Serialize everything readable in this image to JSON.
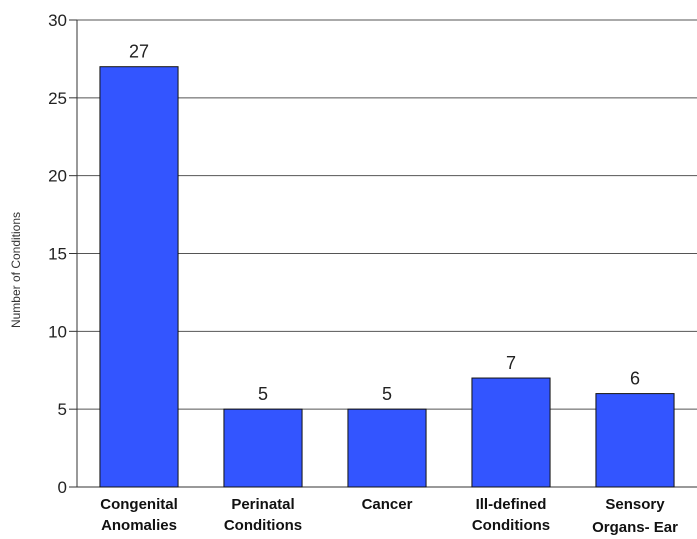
{
  "chart_data": {
    "type": "bar",
    "title": "",
    "xlabel": "",
    "ylabel": "Number of Conditions",
    "ylim": [
      0,
      30
    ],
    "yticks": [
      0,
      5,
      10,
      15,
      20,
      25,
      30
    ],
    "grid": true,
    "legend": "none",
    "categories": [
      [
        "Congenital",
        "Anomalies"
      ],
      [
        "Perinatal",
        "Conditions"
      ],
      [
        "Cancer"
      ],
      [
        "Ill-defined",
        "Conditions"
      ],
      [
        "Sensory",
        "Organs- Ear"
      ]
    ],
    "values": [
      27,
      5,
      5,
      7,
      6
    ],
    "data_labels": [
      "27",
      "5",
      "5",
      "7",
      "6"
    ],
    "colors": {
      "bar": "#3355ff",
      "bar_edge": "#111111",
      "grid": "#555555",
      "axis": "#333333"
    }
  }
}
